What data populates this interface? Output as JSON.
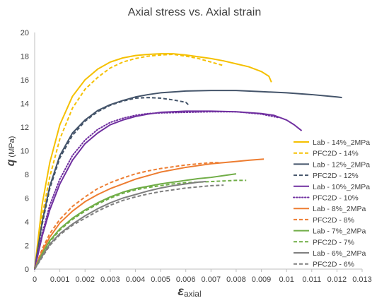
{
  "chart_data": {
    "type": "line",
    "title": "Axial stress vs. Axial strain",
    "xlabel": {
      "symbol": "ε",
      "subscript": "axial"
    },
    "ylabel": {
      "symbol": "q",
      "unit": "(MPa)"
    },
    "xlim": [
      0,
      0.013
    ],
    "ylim": [
      0,
      20
    ],
    "xticks": [
      "0",
      "0.001",
      "0.002",
      "0.003",
      "0.004",
      "0.005",
      "0.006",
      "0.007",
      "0.008",
      "0.009",
      "0.01",
      "0.011",
      "0.012",
      "0.013"
    ],
    "yticks": [
      "0",
      "2",
      "4",
      "6",
      "8",
      "10",
      "12",
      "14",
      "16",
      "18",
      "20"
    ],
    "grid": false,
    "legend_position": "right",
    "series": [
      {
        "name": "Lab - 14%_2MPa",
        "color": "#F5C000",
        "dash": "solid",
        "points": [
          [
            0,
            0
          ],
          [
            0.0003,
            5.5
          ],
          [
            0.0006,
            9
          ],
          [
            0.001,
            12.2
          ],
          [
            0.0015,
            14.6
          ],
          [
            0.002,
            16
          ],
          [
            0.0025,
            16.9
          ],
          [
            0.003,
            17.5
          ],
          [
            0.0035,
            17.85
          ],
          [
            0.004,
            18.05
          ],
          [
            0.0045,
            18.15
          ],
          [
            0.005,
            18.2
          ],
          [
            0.0055,
            18.2
          ],
          [
            0.006,
            18.1
          ],
          [
            0.0065,
            17.95
          ],
          [
            0.007,
            17.8
          ],
          [
            0.0075,
            17.6
          ],
          [
            0.008,
            17.35
          ],
          [
            0.0085,
            17.1
          ],
          [
            0.009,
            16.7
          ],
          [
            0.0093,
            16.3
          ],
          [
            0.0094,
            15.8
          ]
        ]
      },
      {
        "name": "PFC2D - 14%",
        "color": "#F5C000",
        "dash": "dashed",
        "points": [
          [
            0,
            0
          ],
          [
            0.0003,
            4.5
          ],
          [
            0.0006,
            7.8
          ],
          [
            0.001,
            11
          ],
          [
            0.0015,
            13.6
          ],
          [
            0.002,
            15.2
          ],
          [
            0.0025,
            16.2
          ],
          [
            0.003,
            17
          ],
          [
            0.0035,
            17.5
          ],
          [
            0.004,
            17.8
          ],
          [
            0.0045,
            18
          ],
          [
            0.005,
            18.1
          ],
          [
            0.0055,
            18.15
          ],
          [
            0.006,
            18
          ],
          [
            0.0065,
            17.8
          ],
          [
            0.007,
            17.5
          ],
          [
            0.0075,
            17.2
          ]
        ]
      },
      {
        "name": "Lab - 12%_2MPa",
        "color": "#44546A",
        "dash": "solid",
        "points": [
          [
            0,
            0
          ],
          [
            0.0003,
            4
          ],
          [
            0.0006,
            7
          ],
          [
            0.001,
            9.6
          ],
          [
            0.0015,
            11.5
          ],
          [
            0.002,
            12.6
          ],
          [
            0.0025,
            13.4
          ],
          [
            0.003,
            13.9
          ],
          [
            0.0035,
            14.25
          ],
          [
            0.004,
            14.55
          ],
          [
            0.0045,
            14.75
          ],
          [
            0.005,
            14.9
          ],
          [
            0.006,
            15.05
          ],
          [
            0.007,
            15.1
          ],
          [
            0.008,
            15.1
          ],
          [
            0.009,
            15
          ],
          [
            0.01,
            14.9
          ],
          [
            0.011,
            14.75
          ],
          [
            0.012,
            14.55
          ],
          [
            0.0122,
            14.5
          ]
        ]
      },
      {
        "name": "PFC2D - 12%",
        "color": "#44546A",
        "dash": "dashed",
        "points": [
          [
            0,
            0
          ],
          [
            0.0003,
            3.8
          ],
          [
            0.0006,
            6.8
          ],
          [
            0.001,
            9.4
          ],
          [
            0.0015,
            11.3
          ],
          [
            0.002,
            12.5
          ],
          [
            0.0025,
            13.3
          ],
          [
            0.003,
            13.85
          ],
          [
            0.0035,
            14.2
          ],
          [
            0.004,
            14.45
          ],
          [
            0.0045,
            14.5
          ],
          [
            0.005,
            14.45
          ],
          [
            0.0055,
            14.3
          ],
          [
            0.006,
            14.1
          ],
          [
            0.0061,
            13.9
          ]
        ]
      },
      {
        "name": "Lab - 10%_2MPa",
        "color": "#7030A0",
        "dash": "solid",
        "points": [
          [
            0,
            0
          ],
          [
            0.0003,
            2.8
          ],
          [
            0.0006,
            5
          ],
          [
            0.001,
            7.2
          ],
          [
            0.0015,
            9.2
          ],
          [
            0.002,
            10.6
          ],
          [
            0.0025,
            11.5
          ],
          [
            0.003,
            12.2
          ],
          [
            0.0035,
            12.6
          ],
          [
            0.004,
            12.9
          ],
          [
            0.0045,
            13.1
          ],
          [
            0.005,
            13.25
          ],
          [
            0.006,
            13.35
          ],
          [
            0.007,
            13.35
          ],
          [
            0.008,
            13.3
          ],
          [
            0.009,
            13.15
          ],
          [
            0.0095,
            13
          ],
          [
            0.01,
            12.6
          ],
          [
            0.0103,
            12.2
          ],
          [
            0.0106,
            11.7
          ]
        ]
      },
      {
        "name": "PFC2D - 10%",
        "color": "#7030A0",
        "dash": "dotted",
        "points": [
          [
            0,
            0
          ],
          [
            0.0003,
            3
          ],
          [
            0.0006,
            5.4
          ],
          [
            0.001,
            7.6
          ],
          [
            0.0015,
            9.6
          ],
          [
            0.002,
            10.9
          ],
          [
            0.0025,
            11.8
          ],
          [
            0.003,
            12.4
          ],
          [
            0.0035,
            12.75
          ],
          [
            0.004,
            13
          ],
          [
            0.0045,
            13.15
          ],
          [
            0.005,
            13.2
          ],
          [
            0.006,
            13.25
          ],
          [
            0.007,
            13.3
          ],
          [
            0.008,
            13.3
          ],
          [
            0.009,
            13.1
          ],
          [
            0.0097,
            12.8
          ]
        ]
      },
      {
        "name": "Lab - 8%_2MPa",
        "color": "#ED7D31",
        "dash": "solid",
        "points": [
          [
            0,
            0
          ],
          [
            0.0003,
            1.5
          ],
          [
            0.0006,
            2.7
          ],
          [
            0.001,
            3.9
          ],
          [
            0.0015,
            4.9
          ],
          [
            0.002,
            5.7
          ],
          [
            0.0025,
            6.3
          ],
          [
            0.003,
            6.8
          ],
          [
            0.0035,
            7.2
          ],
          [
            0.004,
            7.6
          ],
          [
            0.0045,
            7.9
          ],
          [
            0.005,
            8.2
          ],
          [
            0.0055,
            8.4
          ],
          [
            0.006,
            8.6
          ],
          [
            0.0065,
            8.75
          ],
          [
            0.007,
            8.9
          ],
          [
            0.0075,
            9
          ],
          [
            0.008,
            9.1
          ],
          [
            0.0085,
            9.2
          ],
          [
            0.0091,
            9.3
          ]
        ]
      },
      {
        "name": "PFC2D - 8%",
        "color": "#ED7D31",
        "dash": "dashed",
        "points": [
          [
            0,
            0
          ],
          [
            0.0003,
            1.7
          ],
          [
            0.0006,
            3
          ],
          [
            0.001,
            4.2
          ],
          [
            0.0015,
            5.3
          ],
          [
            0.002,
            6.1
          ],
          [
            0.0025,
            6.8
          ],
          [
            0.003,
            7.3
          ],
          [
            0.0035,
            7.7
          ],
          [
            0.004,
            8.05
          ],
          [
            0.0045,
            8.3
          ],
          [
            0.005,
            8.5
          ],
          [
            0.0055,
            8.65
          ],
          [
            0.006,
            8.8
          ],
          [
            0.0065,
            8.9
          ],
          [
            0.007,
            9
          ],
          [
            0.0073,
            9
          ]
        ]
      },
      {
        "name": "Lab - 7%_2MPa",
        "color": "#70AD47",
        "dash": "solid",
        "points": [
          [
            0,
            0
          ],
          [
            0.0003,
            1.3
          ],
          [
            0.0006,
            2.4
          ],
          [
            0.001,
            3.4
          ],
          [
            0.0015,
            4.3
          ],
          [
            0.002,
            5
          ],
          [
            0.0025,
            5.6
          ],
          [
            0.003,
            6.1
          ],
          [
            0.0035,
            6.5
          ],
          [
            0.004,
            6.8
          ],
          [
            0.0045,
            7
          ],
          [
            0.005,
            7.2
          ],
          [
            0.0055,
            7.35
          ],
          [
            0.006,
            7.5
          ],
          [
            0.0065,
            7.65
          ],
          [
            0.007,
            7.75
          ],
          [
            0.0075,
            7.9
          ],
          [
            0.008,
            8.05
          ]
        ]
      },
      {
        "name": "PFC2D - 7%",
        "color": "#70AD47",
        "dash": "dashed",
        "points": [
          [
            0,
            0
          ],
          [
            0.0003,
            1.2
          ],
          [
            0.0006,
            2.3
          ],
          [
            0.001,
            3.3
          ],
          [
            0.0015,
            4.2
          ],
          [
            0.002,
            4.9
          ],
          [
            0.0025,
            5.5
          ],
          [
            0.003,
            6
          ],
          [
            0.0035,
            6.4
          ],
          [
            0.004,
            6.7
          ],
          [
            0.0045,
            6.9
          ],
          [
            0.005,
            7.05
          ],
          [
            0.0055,
            7.2
          ],
          [
            0.006,
            7.3
          ],
          [
            0.0065,
            7.35
          ],
          [
            0.007,
            7.4
          ],
          [
            0.0075,
            7.45
          ],
          [
            0.008,
            7.5
          ],
          [
            0.0084,
            7.5
          ]
        ]
      },
      {
        "name": "Lab - 6%_2MPa",
        "color": "#7F7F7F",
        "dash": "solid",
        "points": [
          [
            0,
            0
          ],
          [
            0.0003,
            1.1
          ],
          [
            0.0006,
            2.1
          ],
          [
            0.001,
            3
          ],
          [
            0.0015,
            3.8
          ],
          [
            0.002,
            4.5
          ],
          [
            0.0025,
            5.1
          ],
          [
            0.003,
            5.6
          ],
          [
            0.0035,
            6
          ],
          [
            0.004,
            6.3
          ],
          [
            0.0045,
            6.6
          ],
          [
            0.005,
            6.85
          ],
          [
            0.0055,
            7.05
          ],
          [
            0.006,
            7.2
          ],
          [
            0.0065,
            7.35
          ],
          [
            0.0068,
            7.4
          ]
        ]
      },
      {
        "name": "PFC2D - 6%",
        "color": "#7F7F7F",
        "dash": "dashed",
        "points": [
          [
            0,
            0
          ],
          [
            0.0003,
            1
          ],
          [
            0.0006,
            2
          ],
          [
            0.001,
            2.9
          ],
          [
            0.0015,
            3.7
          ],
          [
            0.002,
            4.3
          ],
          [
            0.0025,
            4.9
          ],
          [
            0.003,
            5.4
          ],
          [
            0.0035,
            5.8
          ],
          [
            0.004,
            6.1
          ],
          [
            0.0045,
            6.35
          ],
          [
            0.005,
            6.55
          ],
          [
            0.0055,
            6.7
          ],
          [
            0.006,
            6.85
          ],
          [
            0.0065,
            6.95
          ],
          [
            0.007,
            7.05
          ],
          [
            0.0075,
            7.1
          ]
        ]
      }
    ]
  }
}
